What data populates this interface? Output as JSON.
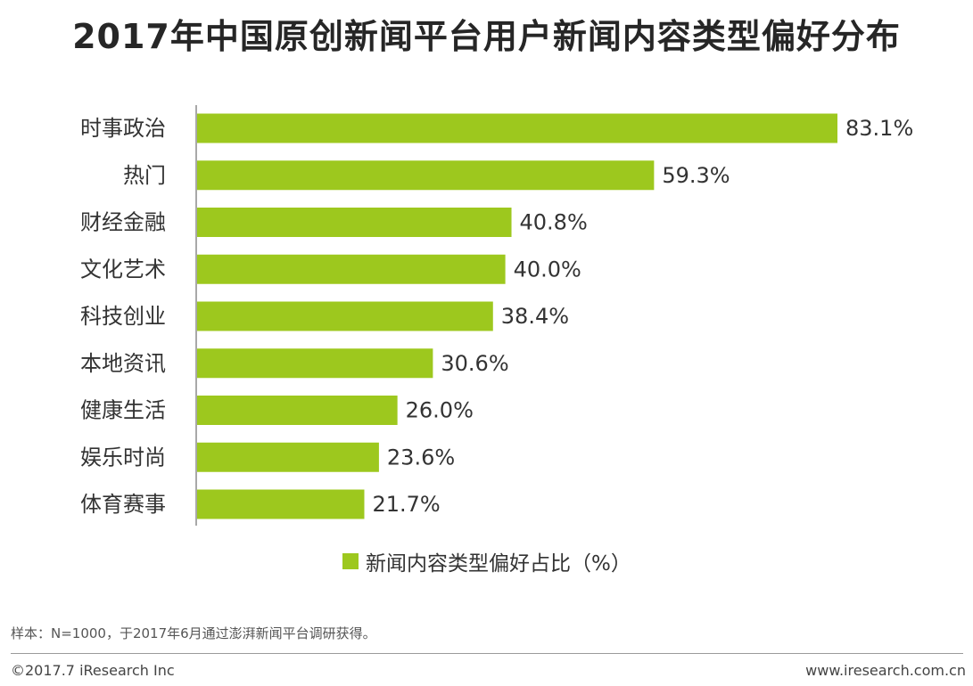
{
  "chart_data": {
    "type": "bar",
    "orientation": "horizontal",
    "title": "2017年中国原创新闻平台用户新闻内容类型偏好分布",
    "categories": [
      "时事政治",
      "热门",
      "财经金融",
      "文化艺术",
      "科技创业",
      "本地资讯",
      "健康生活",
      "娱乐时尚",
      "体育赛事"
    ],
    "series": [
      {
        "name": "新闻内容类型偏好占比（%）",
        "values": [
          83.1,
          59.3,
          40.8,
          40.0,
          38.4,
          30.6,
          26.0,
          23.6,
          21.7
        ],
        "value_labels": [
          "83.1%",
          "59.3%",
          "40.8%",
          "40.0%",
          "38.4%",
          "30.6%",
          "26.0%",
          "23.6%",
          "21.7%"
        ]
      }
    ],
    "xlim": [
      0,
      100
    ],
    "grid": false,
    "legend": "bottom-center",
    "bar_color": "#9dc81e"
  },
  "note": "样本：N=1000，于2017年6月通过澎湃新闻平台调研获得。",
  "footer": {
    "copyright": "©2017.7 iResearch Inc",
    "website": "www.iresearch.com.cn"
  }
}
